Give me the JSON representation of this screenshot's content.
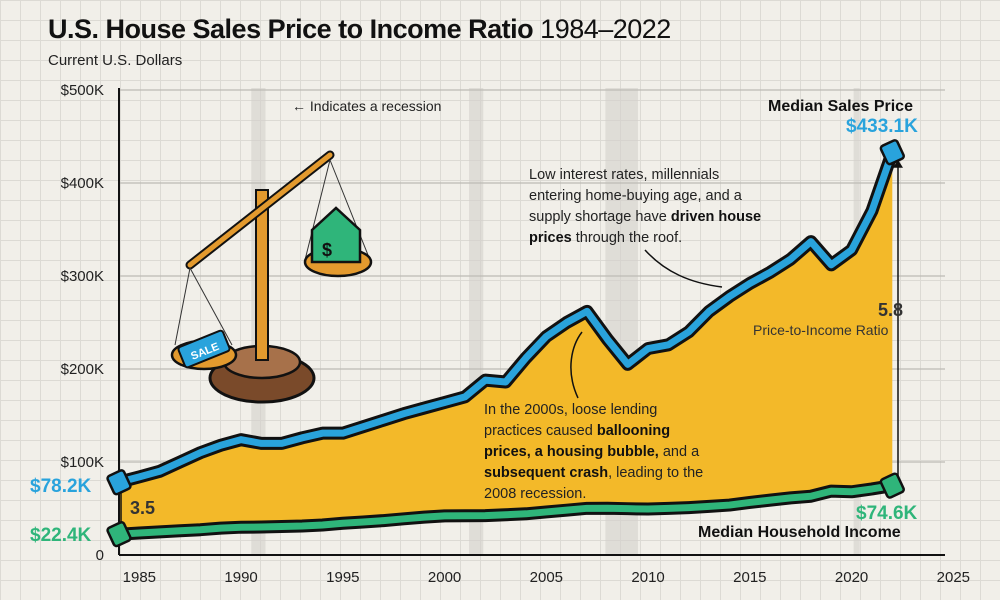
{
  "title": "U.S. House Sales Price to Income Ratio",
  "title_years": "1984–2022",
  "subtitle": "Current U.S. Dollars",
  "recession_note": "← Indicates a recession",
  "annotation_2000s": {
    "t1": "In the 2000s, loose lending practices caused ",
    "b1": "ballooning prices, a housing bubble,",
    "t2": " and a ",
    "b2": "subsequent crash",
    "t3": ", leading to the 2008 recession."
  },
  "annotation_recent": {
    "t1": "Low interest rates, millennials entering home-buying age, and a supply shortage have ",
    "b1": "driven house prices",
    "t2": " through the roof."
  },
  "labels": {
    "price_series": "Median Sales Price",
    "price_end": "$433.1K",
    "price_start": "$78.2K",
    "income_series": "Median Household Income",
    "income_end": "$74.6K",
    "income_start": "$22.4K",
    "ratio_start": "3.5",
    "ratio_end": "5.8",
    "ratio_label": "Price-to-Income Ratio",
    "sale_tag": "SALE"
  },
  "colors": {
    "price": "#29a3dc",
    "income": "#2fb57a",
    "fill": "#f3b929",
    "recession": "#d3d1cb"
  },
  "chart_data": {
    "type": "area",
    "ylabel": "Current U.S. Dollars",
    "xlim": [
      1984,
      2025
    ],
    "ylim": [
      0,
      500
    ],
    "grid": true,
    "x_ticks": [
      "1985",
      "1990",
      "1995",
      "2000",
      "2005",
      "2010",
      "2015",
      "2020",
      "2025"
    ],
    "y_ticks": [
      "0",
      "$100K",
      "$200K",
      "$300K",
      "$400K",
      "$500K"
    ],
    "x": [
      1984,
      1985,
      1986,
      1987,
      1988,
      1989,
      1990,
      1991,
      1992,
      1993,
      1994,
      1995,
      1996,
      1997,
      1998,
      1999,
      2000,
      2001,
      2002,
      2003,
      2004,
      2005,
      2006,
      2007,
      2008,
      2009,
      2010,
      2011,
      2012,
      2013,
      2014,
      2015,
      2016,
      2017,
      2018,
      2019,
      2020,
      2021,
      2022
    ],
    "series": [
      {
        "name": "Median Sales Price",
        "unit": "thousand USD",
        "values": [
          78.2,
          84,
          90,
          100,
          110,
          118,
          124,
          120,
          120,
          126,
          131,
          131,
          138,
          145,
          152,
          158,
          164,
          170,
          188,
          186,
          212,
          235,
          250,
          262,
          232,
          205,
          222,
          226,
          240,
          262,
          278,
          292,
          304,
          318,
          337,
          312,
          328,
          370,
          433.1
        ]
      },
      {
        "name": "Median Household Income",
        "unit": "thousand USD",
        "values": [
          22.4,
          23.6,
          24.9,
          26.1,
          27.2,
          28.9,
          29.9,
          30.1,
          30.6,
          31.2,
          32.3,
          34.1,
          35.5,
          37,
          38.9,
          40.7,
          42.1,
          42.2,
          42.4,
          43.3,
          44.3,
          46.3,
          48.2,
          50.2,
          50.3,
          49.8,
          49.4,
          50.1,
          51,
          52.3,
          53.7,
          56.5,
          59,
          61.4,
          63.2,
          68.7,
          68,
          71,
          74.6
        ]
      }
    ],
    "recessions": [
      [
        1990.5,
        1991.2
      ],
      [
        2001.2,
        2001.9
      ],
      [
        2007.9,
        2009.5
      ],
      [
        2020.1,
        2020.4
      ]
    ]
  }
}
